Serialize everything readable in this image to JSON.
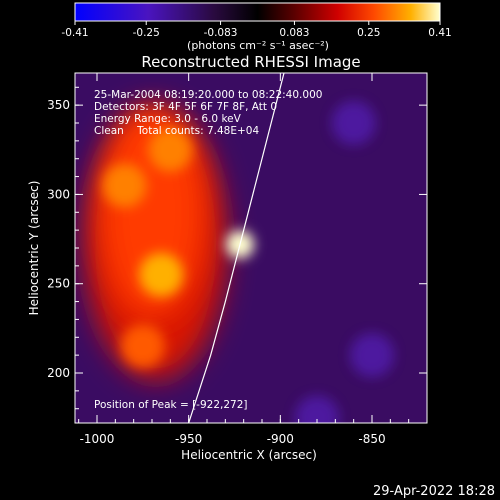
{
  "colorbar": {
    "ticks": [
      "-0.41",
      "-0.25",
      "-0.083",
      "0.083",
      "0.25",
      "0.41"
    ],
    "unit_label": "(photons cm⁻² s⁻¹ asec⁻²)",
    "range": [
      -0.41,
      0.41
    ],
    "colors": [
      "#0000ff",
      "#5a10c8",
      "#3a0e60",
      "#000000",
      "#5a0000",
      "#c00000",
      "#ff3000",
      "#ff9a00",
      "#ffe000",
      "#ffffe0"
    ]
  },
  "chart_data": {
    "type": "heatmap",
    "title": "Reconstructed RHESSI Image",
    "xlabel": "Heliocentric X (arcsec)",
    "ylabel": "Heliocentric Y (arcsec)",
    "xlim": [
      -1012,
      -820
    ],
    "ylim": [
      172,
      368
    ],
    "xticks": [
      "-1000",
      "-950",
      "-900",
      "-850"
    ],
    "xtick_values": [
      -1000,
      -950,
      -900,
      -850
    ],
    "yticks": [
      "200",
      "250",
      "300",
      "350"
    ],
    "ytick_values": [
      200,
      250,
      300,
      350
    ],
    "annotations": [
      "25-Mar-2004 08:19:20.000 to 08:22:40.000",
      "Detectors: 3F 4F 5F 6F 7F 8F, Att 0",
      "Energy Range: 3.0 - 6.0 keV",
      "Clean    Total counts: 7.48E+04"
    ],
    "peak_label": "Position of Peak = [-922,272]",
    "peak": [
      -922,
      272
    ],
    "sources": [
      {
        "x": -922,
        "y": 272,
        "value": 0.41
      },
      {
        "x": -965,
        "y": 255,
        "value": 0.33
      },
      {
        "x": -985,
        "y": 305,
        "value": 0.3
      },
      {
        "x": -960,
        "y": 325,
        "value": 0.28
      },
      {
        "x": -975,
        "y": 215,
        "value": 0.24
      }
    ],
    "limb": [
      [
        -950,
        172
      ],
      [
        -938,
        210
      ],
      [
        -930,
        240
      ],
      [
        -922,
        272
      ],
      [
        -915,
        300
      ],
      [
        -905,
        340
      ],
      [
        -898,
        368
      ]
    ]
  },
  "footer": {
    "timestamp": "29-Apr-2022 18:28"
  }
}
